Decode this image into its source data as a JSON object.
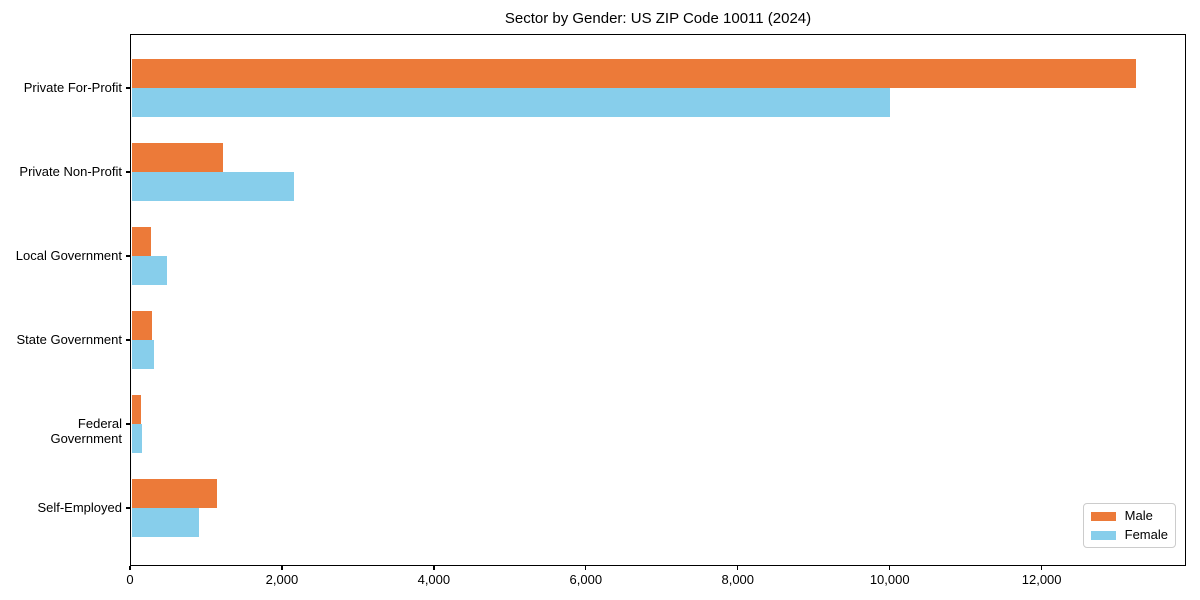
{
  "chart_data": {
    "type": "bar",
    "orientation": "horizontal",
    "title": "Sector by Gender: US ZIP Code 10011 (2024)",
    "categories": [
      "Private For-Profit",
      "Private Non-Profit",
      "Local Government",
      "State Government",
      "Federal Government",
      "Self-Employed"
    ],
    "series": [
      {
        "name": "Male",
        "color": "#ec7a39",
        "values": [
          13240,
          1220,
          270,
          290,
          140,
          1140
        ]
      },
      {
        "name": "Female",
        "color": "#87ceeb",
        "values": [
          10000,
          2160,
          490,
          320,
          160,
          910
        ]
      }
    ],
    "xlabel": "",
    "ylabel": "",
    "xlim": [
      0,
      13900
    ],
    "xticks": [
      0,
      2000,
      4000,
      6000,
      8000,
      10000,
      12000
    ],
    "xtick_labels": [
      "0",
      "2,000",
      "4,000",
      "6,000",
      "8,000",
      "10,000",
      "12,000"
    ],
    "grid": false,
    "legend_position": "lower right",
    "background_color": "#ffffff",
    "spine_color": "#000000",
    "text_color": "#000000"
  }
}
